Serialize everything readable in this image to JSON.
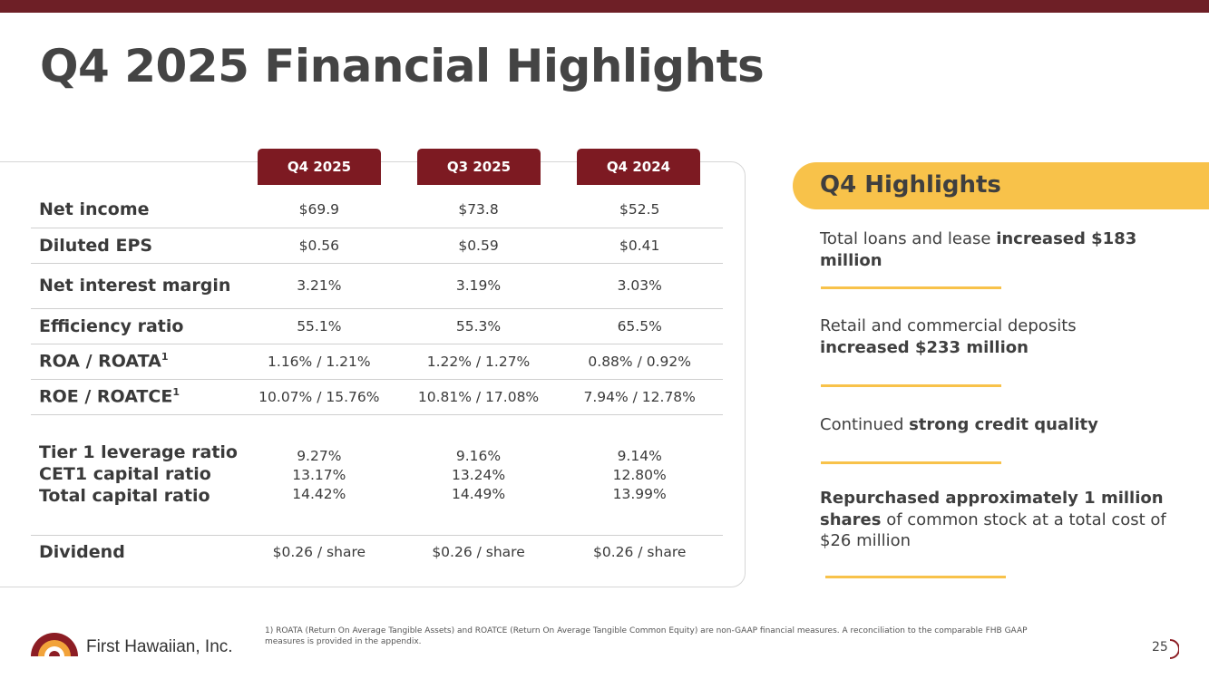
{
  "slide": {
    "title": "Q4 2025 Financial Highlights",
    "page_number": "25"
  },
  "colors": {
    "brand_maroon": "#6e1f26",
    "tab_red": "#7d1a22",
    "highlight_yellow": "#f8c24a",
    "text_gray": "#3a3a3a"
  },
  "table": {
    "columns": [
      "Q4 2025",
      "Q3 2025",
      "Q4 2024"
    ],
    "rows": [
      {
        "label": "Net income",
        "values": [
          "$69.9",
          "$73.8",
          "$52.5"
        ]
      },
      {
        "label": "Diluted EPS",
        "values": [
          "$0.56",
          "$0.59",
          "$0.41"
        ]
      },
      {
        "label": "Net interest margin",
        "values": [
          "3.21%",
          "3.19%",
          "3.03%"
        ]
      },
      {
        "label": "Efficiency ratio",
        "values": [
          "55.1%",
          "55.3%",
          "65.5%"
        ]
      },
      {
        "label": "ROA / ROATA",
        "footnote_mark": "1",
        "values": [
          "1.16% / 1.21%",
          "1.22% / 1.27%",
          "0.88% / 0.92%"
        ]
      },
      {
        "label": "ROE / ROATCE",
        "footnote_mark": "1",
        "values": [
          "10.07% / 15.76%",
          "10.81% / 17.08%",
          "7.94% / 12.78%"
        ]
      }
    ],
    "capital": {
      "labels": [
        "Tier 1 leverage ratio",
        "CET1 capital ratio",
        "Total capital ratio"
      ],
      "values": [
        [
          "9.27%",
          "13.17%",
          "14.42%"
        ],
        [
          "9.16%",
          "13.24%",
          "14.49%"
        ],
        [
          "9.14%",
          "12.80%",
          "13.99%"
        ]
      ]
    },
    "dividend": {
      "label": "Dividend",
      "values": [
        "$0.26 / share",
        "$0.26 / share",
        "$0.26 / share"
      ]
    }
  },
  "highlights": {
    "title": "Q4 Highlights",
    "items": [
      {
        "parts": [
          {
            "text": "Total loans and lease ",
            "bold": false
          },
          {
            "text": "increased $183 million",
            "bold": true
          }
        ]
      },
      {
        "parts": [
          {
            "text": "Retail and commercial deposits ",
            "bold": false
          },
          {
            "text": "increased $233 million",
            "bold": true
          }
        ]
      },
      {
        "parts": [
          {
            "text": "Continued ",
            "bold": false
          },
          {
            "text": "strong credit quality",
            "bold": true
          }
        ]
      },
      {
        "parts": [
          {
            "text": "Repurchased approximately 1 million shares",
            "bold": true
          },
          {
            "text": " of common stock at a total cost of $26 million",
            "bold": false
          }
        ]
      }
    ]
  },
  "footer": {
    "footnote": "1) ROATA (Return On Average Tangible Assets) and ROATCE (Return On Average Tangible Common Equity) are non-GAAP financial measures.  A reconciliation to the comparable FHB GAAP measures is provided in the appendix.",
    "company_name": "First Hawaiian, Inc."
  }
}
